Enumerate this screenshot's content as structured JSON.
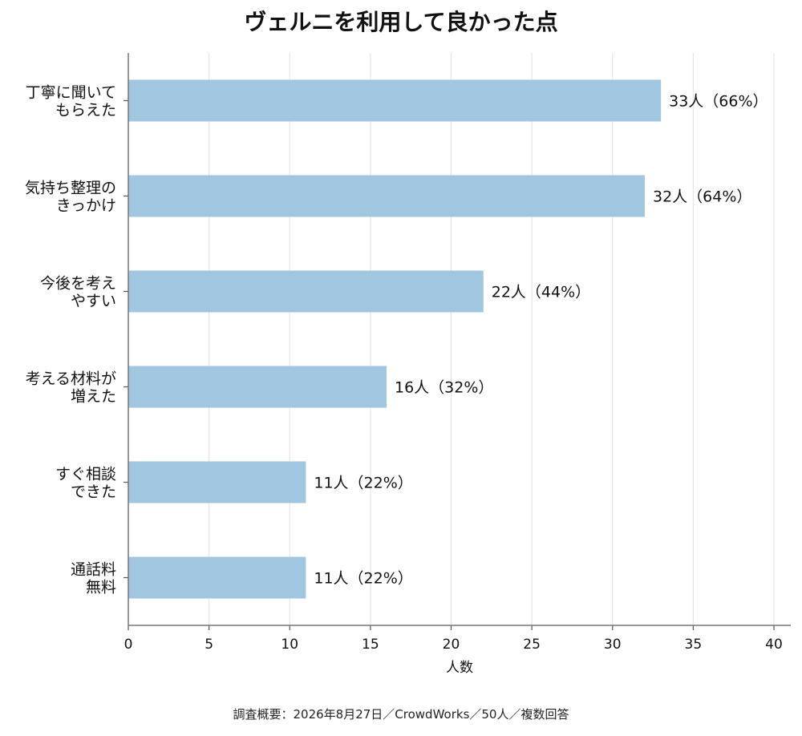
{
  "chart_data": {
    "type": "bar",
    "orientation": "horizontal",
    "title": "ヴェルニを利用して良かった点",
    "xlabel": "人数",
    "ylabel": "",
    "xlim": [
      0,
      40
    ],
    "x_ticks": [
      0,
      5,
      10,
      15,
      20,
      25,
      30,
      35,
      40
    ],
    "grid": "vertical",
    "categories": [
      [
        "丁寧に聞いて",
        "もらえた"
      ],
      [
        "気持ち整理の",
        "きっかけ"
      ],
      [
        "今後を考え",
        "やすい"
      ],
      [
        "考える材料が",
        "増えた"
      ],
      [
        "すぐ相談",
        "できた"
      ],
      [
        "通話料",
        "無料"
      ]
    ],
    "values": [
      33,
      32,
      22,
      16,
      11,
      11
    ],
    "data_labels": [
      "33人（66%）",
      "32人（64%）",
      "22人（44%）",
      "16人（32%）",
      "11人（22%）",
      "11人（22%）"
    ],
    "bar_color": "#a0c6e0",
    "note": "調査概要：2026年8月27日／CrowdWorks／50人／複数回答"
  }
}
